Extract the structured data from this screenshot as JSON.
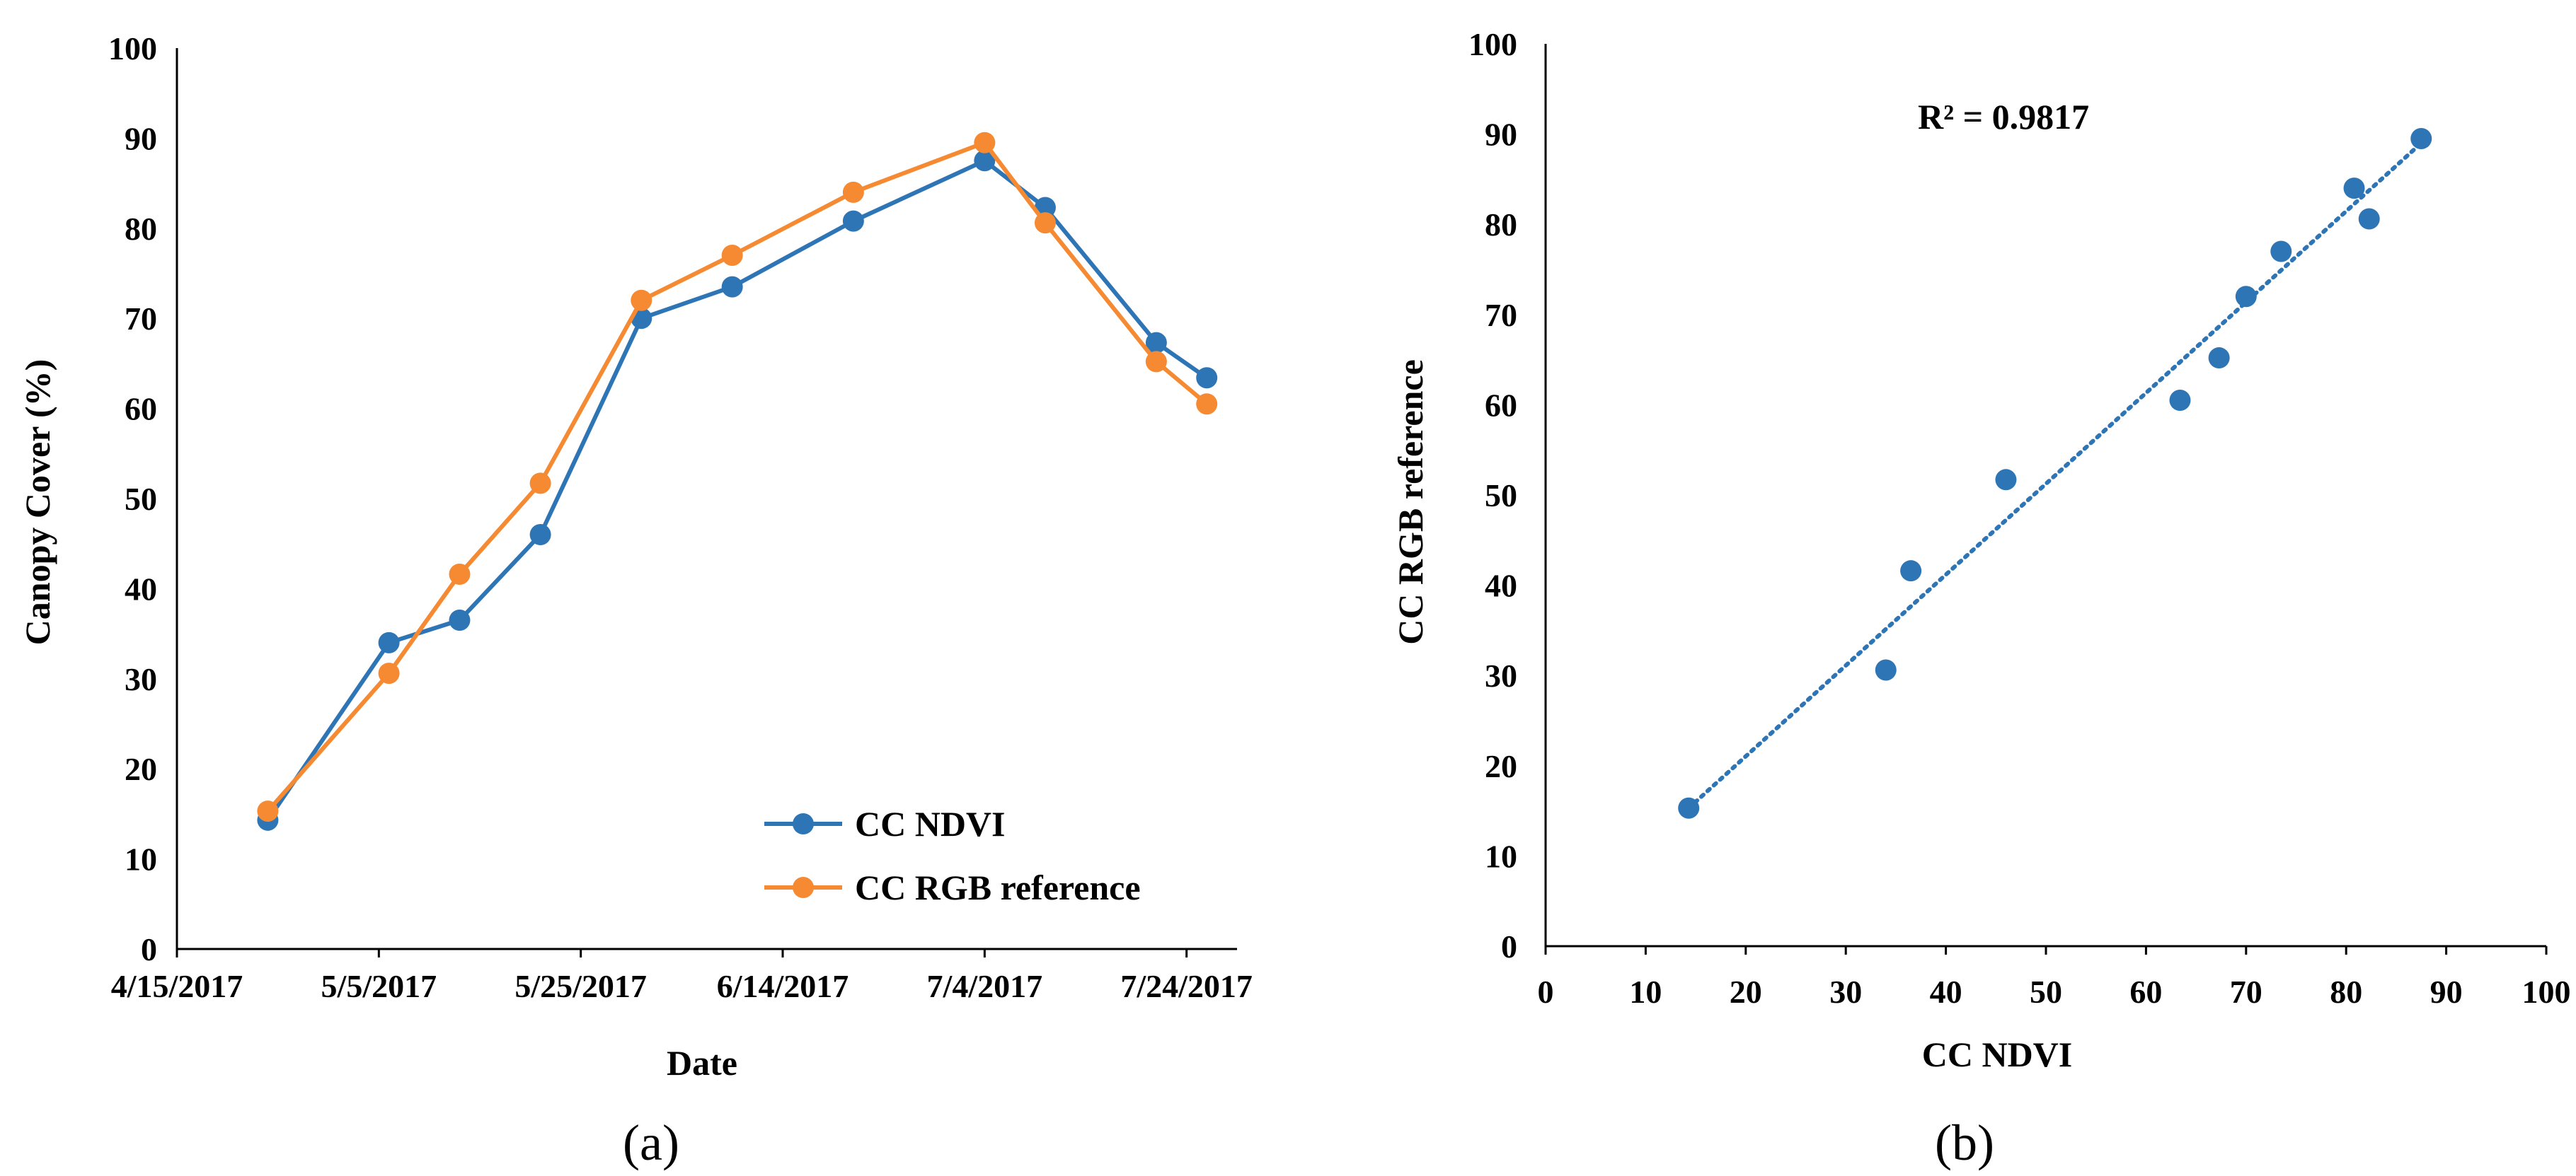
{
  "chart_data": [
    {
      "type": "line",
      "panel_label": "(a)",
      "title": "",
      "xlabel": "Date",
      "ylabel": "Canopy Cover (%)",
      "ylim": [
        0,
        100
      ],
      "yticks": [
        "0",
        "10",
        "20",
        "30",
        "40",
        "50",
        "60",
        "70",
        "80",
        "90",
        "100"
      ],
      "xticks": [
        "4/15/2017",
        "5/5/2017",
        "5/25/2017",
        "6/14/2017",
        "7/4/2017",
        "7/24/2017"
      ],
      "xlim": [
        "4/15/2017",
        "7/29/2017"
      ],
      "grid": false,
      "legend_position": "bottom-right",
      "series": [
        {
          "name": "CC NDVI",
          "color": "#2E75B6",
          "points": [
            {
              "x": "4/24/2017",
              "y": 14.3
            },
            {
              "x": "5/6/2017",
              "y": 34.0
            },
            {
              "x": "5/13/2017",
              "y": 36.5
            },
            {
              "x": "5/21/2017",
              "y": 46.0
            },
            {
              "x": "5/31/2017",
              "y": 70.0
            },
            {
              "x": "6/9/2017",
              "y": 73.5
            },
            {
              "x": "6/21/2017",
              "y": 80.8
            },
            {
              "x": "7/4/2017",
              "y": 87.5
            },
            {
              "x": "7/10/2017",
              "y": 82.3
            },
            {
              "x": "7/21/2017",
              "y": 67.3
            },
            {
              "x": "7/26/2017",
              "y": 63.4
            }
          ]
        },
        {
          "name": "CC RGB reference",
          "color": "#F58A32",
          "points": [
            {
              "x": "4/24/2017",
              "y": 15.3
            },
            {
              "x": "5/6/2017",
              "y": 30.6
            },
            {
              "x": "5/13/2017",
              "y": 41.6
            },
            {
              "x": "5/21/2017",
              "y": 51.7
            },
            {
              "x": "5/31/2017",
              "y": 72.0
            },
            {
              "x": "6/9/2017",
              "y": 77.0
            },
            {
              "x": "6/21/2017",
              "y": 84.0
            },
            {
              "x": "7/4/2017",
              "y": 89.5
            },
            {
              "x": "7/10/2017",
              "y": 80.6
            },
            {
              "x": "7/21/2017",
              "y": 65.2
            },
            {
              "x": "7/26/2017",
              "y": 60.5
            }
          ]
        }
      ]
    },
    {
      "type": "scatter",
      "panel_label": "(b)",
      "title": "",
      "xlabel": "CC NDVI",
      "ylabel": "CC RGB reference",
      "xlim": [
        0,
        100
      ],
      "ylim": [
        0,
        100
      ],
      "xticks": [
        "0",
        "10",
        "20",
        "30",
        "40",
        "50",
        "60",
        "70",
        "80",
        "90",
        "100"
      ],
      "yticks": [
        "0",
        "10",
        "20",
        "30",
        "40",
        "50",
        "60",
        "70",
        "80",
        "90",
        "100"
      ],
      "grid": false,
      "annotation": "R² = 0.9817",
      "trendline": {
        "style": "dotted",
        "color": "#2E75B6",
        "from": [
          14.3,
          15.3
        ],
        "to": [
          87.5,
          89.0
        ]
      },
      "series": [
        {
          "color": "#2E75B6",
          "points": [
            {
              "x": 14.3,
              "y": 15.3
            },
            {
              "x": 34.0,
              "y": 30.6
            },
            {
              "x": 36.5,
              "y": 41.6
            },
            {
              "x": 46.0,
              "y": 51.7
            },
            {
              "x": 63.4,
              "y": 60.5
            },
            {
              "x": 67.3,
              "y": 65.2
            },
            {
              "x": 70.0,
              "y": 72.0
            },
            {
              "x": 73.5,
              "y": 77.0
            },
            {
              "x": 80.8,
              "y": 84.0
            },
            {
              "x": 82.3,
              "y": 80.6
            },
            {
              "x": 87.5,
              "y": 89.5
            }
          ]
        }
      ]
    }
  ]
}
